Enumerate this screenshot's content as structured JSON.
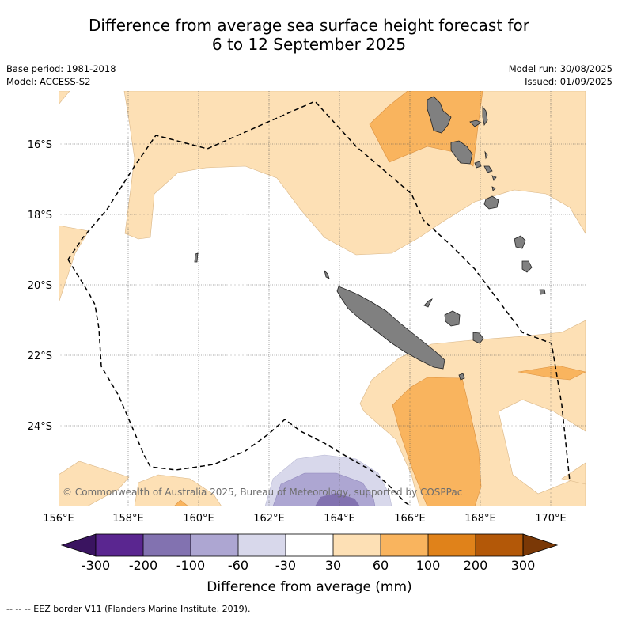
{
  "title": {
    "line1": "Difference from average sea surface height forecast for",
    "line2": "6 to 12 September 2025"
  },
  "meta": {
    "base_period": "Base period: 1981-2018",
    "model": "Model: ACCESS-S2",
    "model_run": "Model run: 30/08/2025",
    "issued": "Issued: 01/09/2025"
  },
  "map": {
    "lat_labels": [
      "16°S",
      "18°S",
      "20°S",
      "22°S",
      "24°S"
    ],
    "lon_labels": [
      "156°E",
      "158°E",
      "160°E",
      "162°E",
      "164°E",
      "166°E",
      "168°E",
      "170°E"
    ],
    "copyright": "© Commonwealth of Australia 2025, Bureau of Meteorology, supported by COSPPac",
    "land_color": "#808080",
    "eez_line": "dashed"
  },
  "colorbar": {
    "title": "Difference from average (mm)",
    "labels": [
      "-300",
      "-200",
      "-100",
      "-60",
      "-30",
      "30",
      "60",
      "100",
      "200",
      "300"
    ],
    "colors": [
      "#3a1460",
      "#5a2690",
      "#8272b0",
      "#ada6d2",
      "#d8d8eb",
      "#ffffff",
      "#fde0b5",
      "#f9b45e",
      "#e0821a",
      "#b35808",
      "#7a3806"
    ]
  },
  "legend": {
    "eez": "--  --  -- EEZ border V11 (Flanders Marine Institute, 2019)."
  }
}
